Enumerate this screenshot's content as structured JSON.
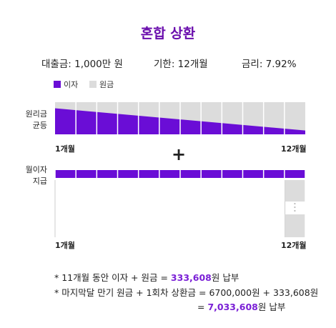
{
  "title": "혼합 상환",
  "info": {
    "loan": "대출금: 1,000만 원",
    "term": "기한: 12개월",
    "rate": "금리: 7.92%"
  },
  "legend": {
    "interest": "이자",
    "principal": "원금"
  },
  "colors": {
    "interest": "#6a0dd6",
    "principal": "#dcdcdc"
  },
  "section1": {
    "label_line1": "원리금",
    "label_line2": "균등",
    "start": "1개월",
    "end": "12개월"
  },
  "plus": "+",
  "section2": {
    "label_line1": "월이자",
    "label_line2": "지급",
    "start": "1개월",
    "end": "12개월"
  },
  "notes": {
    "line1_pre": "* 11개월 동안 이자 + 원금 = ",
    "line1_amount": "333,608",
    "line1_post": "원 납부",
    "line2": "* 마지막달 만기 원금 + 1회차 상환금 = 6700,000원 + 333,608원",
    "line3_pre": "= ",
    "line3_amount": "7,033,608",
    "line3_post": "원 납부"
  },
  "chart_data": {
    "type": "diagram",
    "months": 12,
    "equal_installment": {
      "interest_share_start": 0.81,
      "interest_share_end": 0.12
    },
    "interest_only": {
      "interest_share": 0.12,
      "final_month_principal_share": 1.0
    }
  }
}
